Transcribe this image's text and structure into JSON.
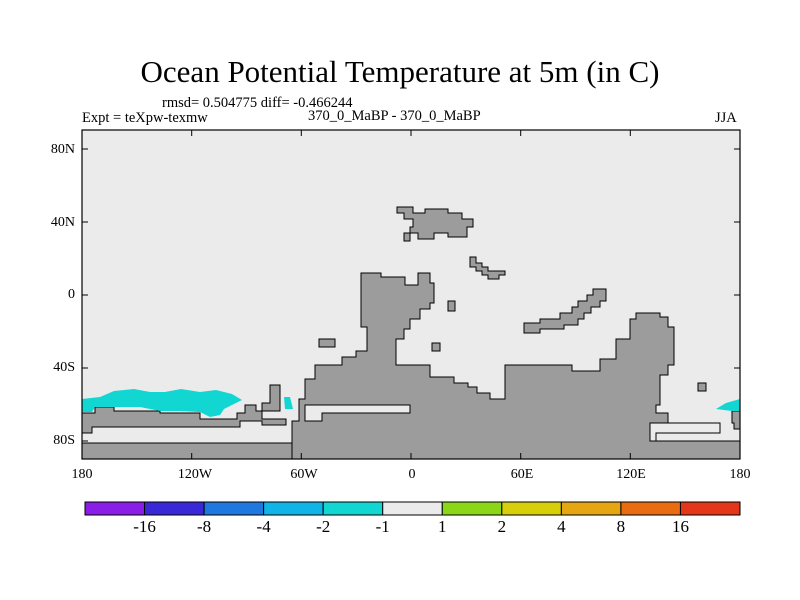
{
  "title": "Ocean Potential Temperature at 5m (in C)",
  "stats": "rmsd= 0.504775 diff= -0.466244",
  "experiment_label": "Expt = teXpw-texmw",
  "comparison_label": "370_0_MaBP - 370_0_MaBP",
  "season": "JJA",
  "lat_ticks": [
    "80N",
    "40N",
    "0",
    "40S",
    "80S"
  ],
  "lon_ticks": [
    "180",
    "120W",
    "60W",
    "0",
    "60E",
    "120E",
    "180"
  ],
  "colorbar": {
    "labels": [
      "-16",
      "-8",
      "-4",
      "-2",
      "-1",
      "1",
      "2",
      "4",
      "8",
      "16"
    ],
    "colors": [
      "#8a1ee6",
      "#3a28d8",
      "#1f78e0",
      "#10b4e6",
      "#12d6d2",
      "#ebebeb",
      "#8cd61a",
      "#d6cf0a",
      "#e6a612",
      "#ea6c10",
      "#e4361a"
    ]
  },
  "colors": {
    "ocean_fill": "#ebebeb",
    "land_fill": "#9c9c9c",
    "anomaly_fill": "#12d6d2"
  }
}
